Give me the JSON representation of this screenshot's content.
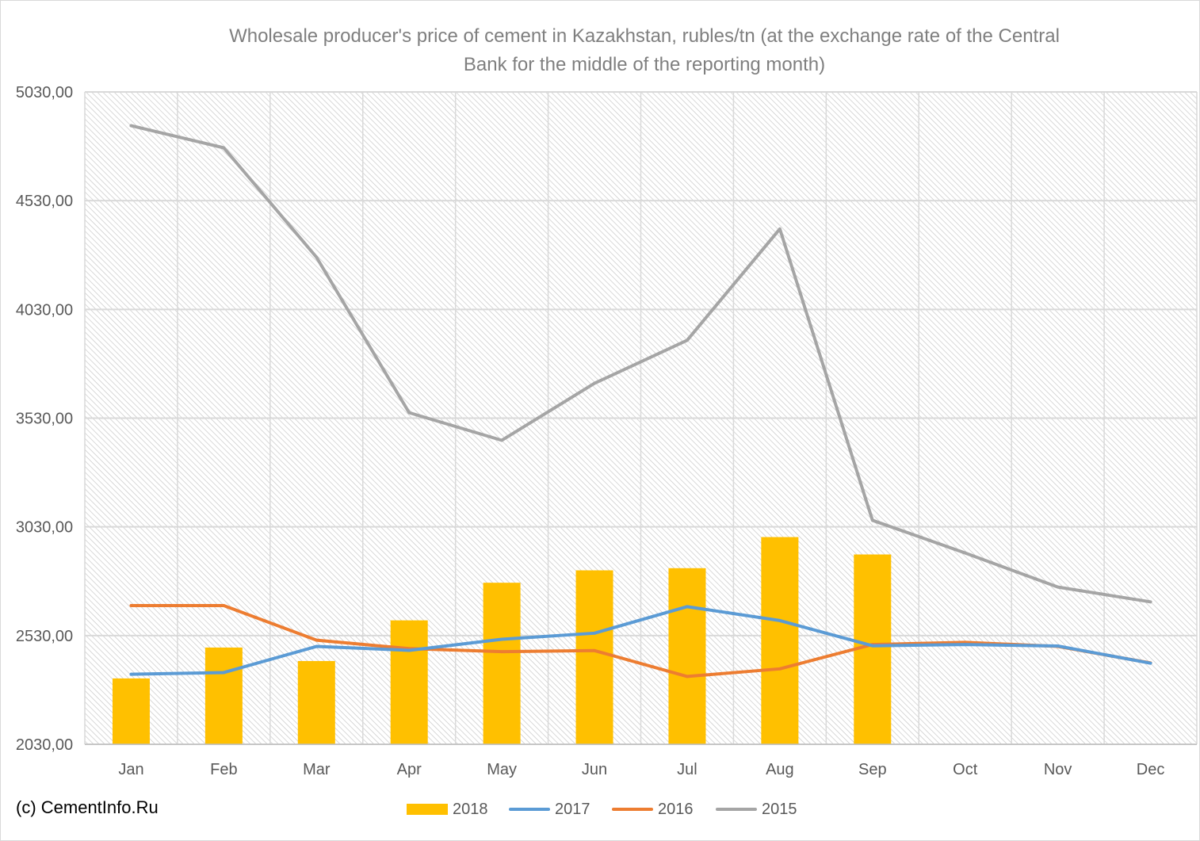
{
  "chart_data": {
    "type": "bar+line",
    "title_lines": [
      "Wholesale producer's price of cement in Kazakhstan, rubles/tn (at the exchange rate of the Central",
      "Bank for the middle of the reporting month)"
    ],
    "categories": [
      "Jan",
      "Feb",
      "Mar",
      "Apr",
      "May",
      "Jun",
      "Jul",
      "Aug",
      "Sep",
      "Oct",
      "Nov",
      "Dec"
    ],
    "ylim": [
      2030,
      5030
    ],
    "y_ticks": [
      2030,
      2530,
      3030,
      3530,
      4030,
      4530,
      5030
    ],
    "y_tick_labels": [
      "2030,00",
      "2530,00",
      "3030,00",
      "3530,00",
      "4030,00",
      "4530,00",
      "5030,00"
    ],
    "grid": true,
    "plot_background": "hatched-light-gray",
    "legend_position": "bottom",
    "series": [
      {
        "name": "2018",
        "kind": "bar",
        "color": "#ffc000",
        "values": [
          2333,
          2475,
          2413,
          2600,
          2773,
          2830,
          2840,
          2983,
          2903,
          null,
          null,
          null
        ]
      },
      {
        "name": "2017",
        "kind": "line",
        "color": "#5b9bd5",
        "values": [
          2352,
          2360,
          2480,
          2462,
          2513,
          2541,
          2663,
          2599,
          2483,
          2489,
          2482,
          2403
        ]
      },
      {
        "name": "2016",
        "kind": "line",
        "color": "#ed7d31",
        "values": [
          2668,
          2668,
          2509,
          2470,
          2456,
          2461,
          2342,
          2377,
          2489,
          2499,
          2480,
          2404
        ]
      },
      {
        "name": "2015",
        "kind": "line",
        "color": "#a5a5a5",
        "values": [
          4875,
          4773,
          4270,
          3555,
          3428,
          3690,
          3888,
          4400,
          3060,
          2910,
          2753,
          2685
        ]
      }
    ]
  },
  "credit": "(c) CementInfo.Ru"
}
